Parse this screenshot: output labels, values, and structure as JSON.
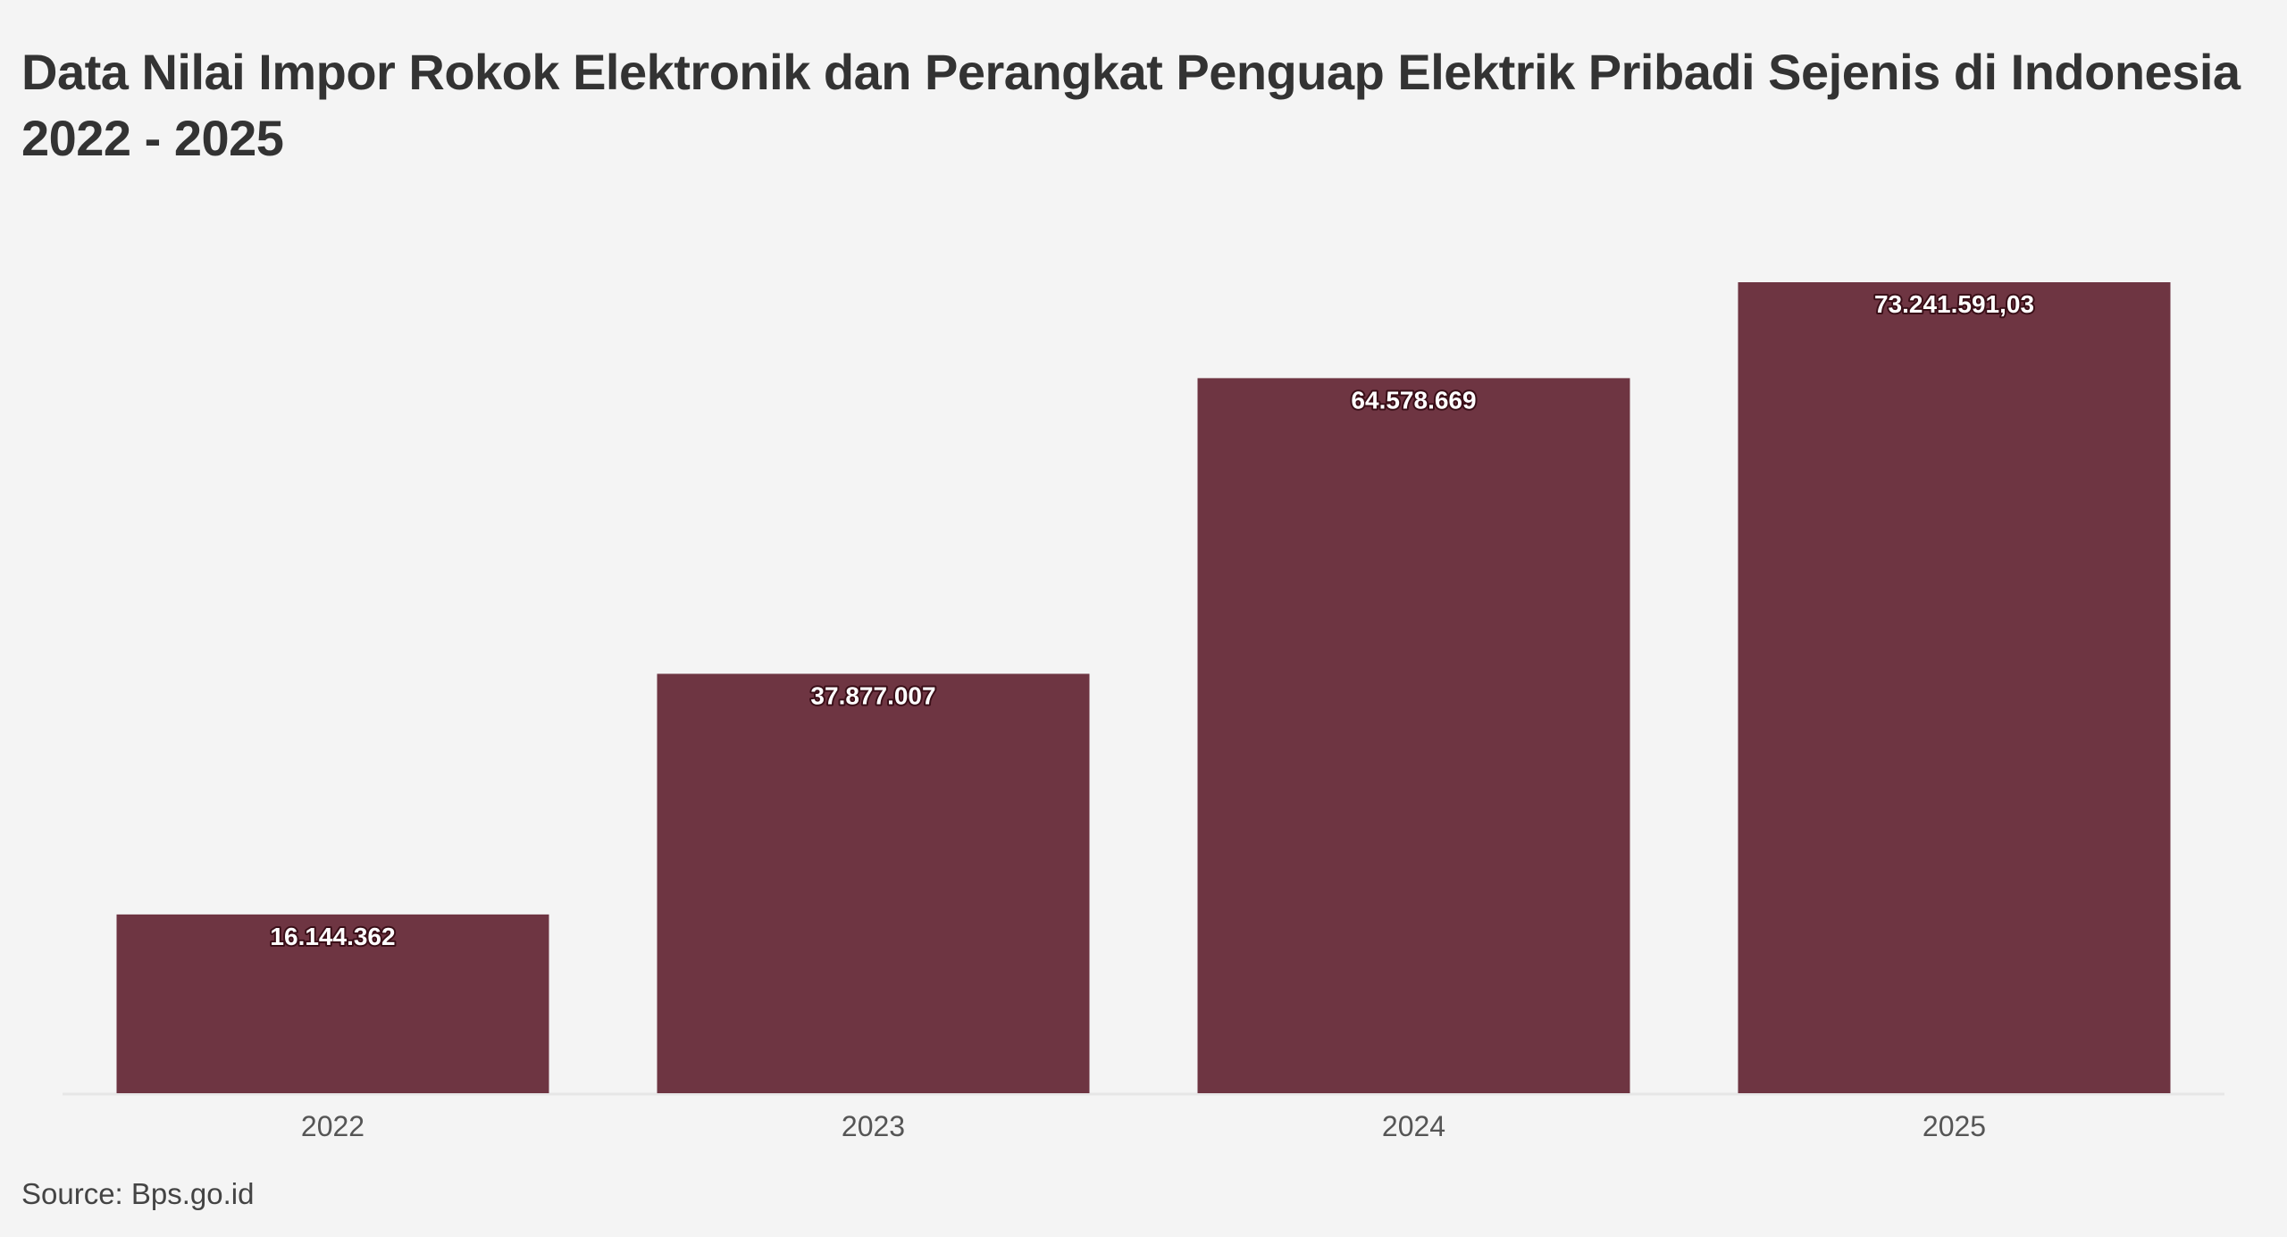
{
  "header": {
    "title_line1": "Data Nilai Impor Rokok Elektronik dan Perangkat Penguap Elektrik Pribadi Sejenis di Indonesia",
    "title_line2": "2022 - 2025"
  },
  "footer": {
    "source": "Source: Bps.go.id"
  },
  "colors": {
    "bar": "#6e3542",
    "background": "#f4f4f4",
    "baseline": "#e6e6e6"
  },
  "chart_data": {
    "type": "bar",
    "title": "Data Nilai Impor Rokok Elektronik dan Perangkat Penguap Elektrik Pribadi Sejenis di Indonesia 2022 - 2025",
    "categories": [
      "2022",
      "2023",
      "2024",
      "2025"
    ],
    "values": [
      16144362,
      37877007,
      64578669,
      73241591.03
    ],
    "value_labels": [
      "16.144.362",
      "37.877.007",
      "64.578.669",
      "73.241.591,03"
    ],
    "xlabel": "",
    "ylabel": "",
    "ylim": [
      0,
      73241591.03
    ],
    "grid": false,
    "legend": "none",
    "data_labels": "inside-top"
  }
}
